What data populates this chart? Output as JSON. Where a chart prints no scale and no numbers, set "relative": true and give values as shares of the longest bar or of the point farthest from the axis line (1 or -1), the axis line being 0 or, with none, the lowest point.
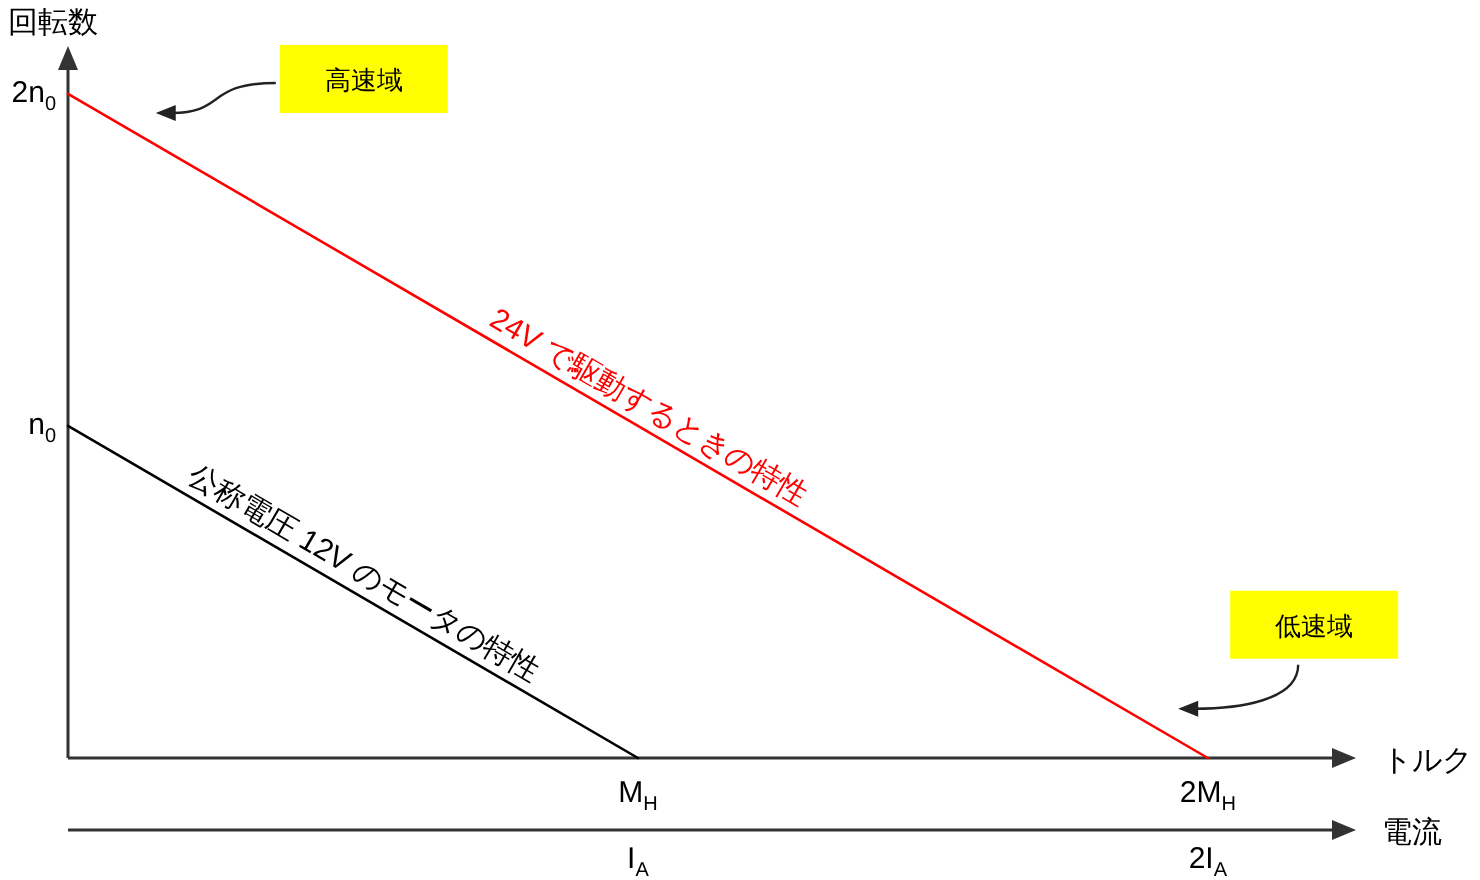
{
  "chart_data": {
    "type": "line",
    "ylabel": "回転数",
    "xlabel": "トルク",
    "x2label": "電流",
    "categories": [
      null,
      "M$_{H}$",
      "2M$_{H}$"
    ],
    "relative": true,
    "series": [
      {
        "name": "公称電圧 12V のモータの特性",
        "color": "#000000",
        "values": [
          0.5,
          0,
          null
        ]
      },
      {
        "name": "24V で駆動するときの特性",
        "color": "#ff0000",
        "values": [
          1,
          0.5,
          0
        ]
      }
    ],
    "annotations": [
      "2n$_{0}$",
      "高速域",
      "n$_{0}$",
      "低速域",
      "I$_{A}$",
      "2I$_{A}$"
    ]
  }
}
